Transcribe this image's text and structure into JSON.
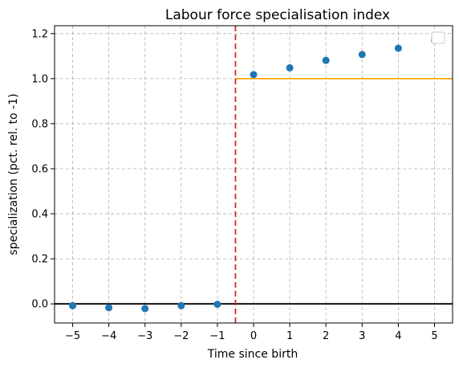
{
  "chart_data": {
    "type": "scatter",
    "title": "Labour force specialisation index",
    "xlabel": "Time since birth",
    "ylabel": "specialization (pct. rel. to -1)",
    "xlim": [
      -5.5,
      5.5
    ],
    "ylim": [
      -0.085,
      1.235
    ],
    "xticks": [
      -5,
      -4,
      -3,
      -2,
      -1,
      0,
      1,
      2,
      3,
      4,
      5
    ],
    "yticks": [
      0.0,
      0.2,
      0.4,
      0.6,
      0.8,
      1.0,
      1.2
    ],
    "grid": true,
    "legend": "top-right (empty)",
    "series": [
      {
        "x": [
          -5,
          -4,
          -3,
          -2,
          -1,
          0,
          1,
          2,
          3,
          4,
          5
        ],
        "values": [
          -0.008,
          -0.017,
          -0.021,
          -0.008,
          -0.002,
          1.018,
          1.048,
          1.081,
          1.107,
          1.135,
          1.17
        ],
        "color": "#1f77b4"
      }
    ],
    "reference_lines": {
      "zero_line": {
        "y": 0.0,
        "color": "#000000"
      },
      "vline": {
        "x": -0.5,
        "color": "#d62728",
        "style": "dashed"
      },
      "post_line": {
        "y": 1.0,
        "x_from": -0.5,
        "color": "#ffa500"
      }
    }
  }
}
